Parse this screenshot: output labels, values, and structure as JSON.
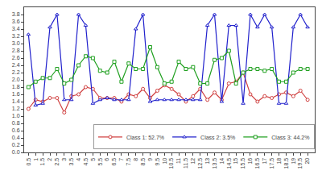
{
  "chart_data": {
    "type": "line",
    "x": [
      0.5,
      1.0,
      1.5,
      2.0,
      2.5,
      3.0,
      3.5,
      4.0,
      4.5,
      5.0,
      5.5,
      6.0,
      6.5,
      7.0,
      7.5,
      8.0,
      8.5,
      9.0,
      9.5,
      10.0,
      10.5,
      11.0,
      11.5,
      12.0,
      12.5,
      13.0,
      13.5,
      14.0,
      14.5,
      15.0,
      15.5,
      16.0,
      16.5,
      17.0,
      17.5,
      18.0,
      18.5,
      19.0,
      19.5,
      20.0
    ],
    "series": [
      {
        "name": "Class 1: 52.7%",
        "color": "#d04040",
        "marker": "circle",
        "values": [
          1.2,
          1.45,
          1.4,
          1.5,
          1.5,
          1.1,
          1.55,
          1.6,
          1.8,
          1.75,
          1.5,
          1.5,
          1.5,
          1.4,
          1.6,
          1.55,
          1.75,
          1.5,
          1.7,
          1.85,
          1.75,
          1.6,
          1.4,
          1.55,
          1.75,
          1.45,
          1.65,
          1.45,
          1.9,
          1.95,
          2.2,
          1.6,
          1.4,
          1.55,
          1.5,
          1.6,
          1.65,
          1.55,
          1.7,
          1.45
        ]
      },
      {
        "name": "Class 2: 3.5%",
        "color": "#2020cc",
        "marker": "triangle-up",
        "values": [
          3.25,
          1.3,
          1.35,
          3.45,
          3.8,
          1.45,
          1.45,
          3.8,
          3.5,
          1.35,
          1.45,
          1.5,
          1.45,
          1.45,
          1.45,
          3.4,
          3.8,
          1.4,
          1.45,
          1.45,
          1.45,
          1.45,
          1.45,
          1.45,
          1.45,
          3.5,
          3.8,
          1.4,
          3.5,
          3.5,
          1.35,
          3.8,
          3.45,
          3.8,
          3.45,
          1.35,
          1.35,
          3.45,
          3.8,
          3.45
        ]
      },
      {
        "name": "Class 3: 44.2%",
        "color": "#20a020",
        "marker": "square",
        "values": [
          1.8,
          1.95,
          2.05,
          2.05,
          2.3,
          1.9,
          2.0,
          2.4,
          2.65,
          2.6,
          2.25,
          2.2,
          2.5,
          1.95,
          2.45,
          2.3,
          2.3,
          2.9,
          2.35,
          1.9,
          1.95,
          2.5,
          2.3,
          2.35,
          1.9,
          1.9,
          2.55,
          2.6,
          2.8,
          1.9,
          2.2,
          2.3,
          2.3,
          2.25,
          2.3,
          1.95,
          1.95,
          2.2,
          2.3,
          2.3
        ]
      }
    ],
    "xlim": [
      0.2,
      20.5
    ],
    "xticks": [
      0.5,
      1,
      1.5,
      2,
      2.5,
      3,
      3.5,
      4,
      4.5,
      5,
      5.5,
      6,
      6.5,
      7,
      7.5,
      8,
      8.5,
      9,
      9.5,
      10,
      10.5,
      11,
      11.5,
      12,
      12.5,
      13,
      13.5,
      14,
      14.5,
      15,
      15.5,
      16,
      16.5,
      17,
      17.5,
      18,
      18.5,
      19,
      19.5,
      20
    ],
    "ylim": [
      0,
      4.0
    ],
    "yticks": [
      {
        "value": 0,
        "label": "0.0"
      },
      0.2,
      0.4,
      0.6,
      0.8,
      {
        "value": 1.0,
        "label": "1.0"
      },
      1.2,
      1.4,
      1.6,
      1.8,
      {
        "value": 2.0,
        "label": "2.0"
      },
      2.2,
      2.4,
      2.6,
      2.8,
      {
        "value": 3.0,
        "label": "3.0"
      },
      3.2,
      3.4,
      3.6,
      3.8
    ],
    "grid": false,
    "legend": "lower right"
  }
}
